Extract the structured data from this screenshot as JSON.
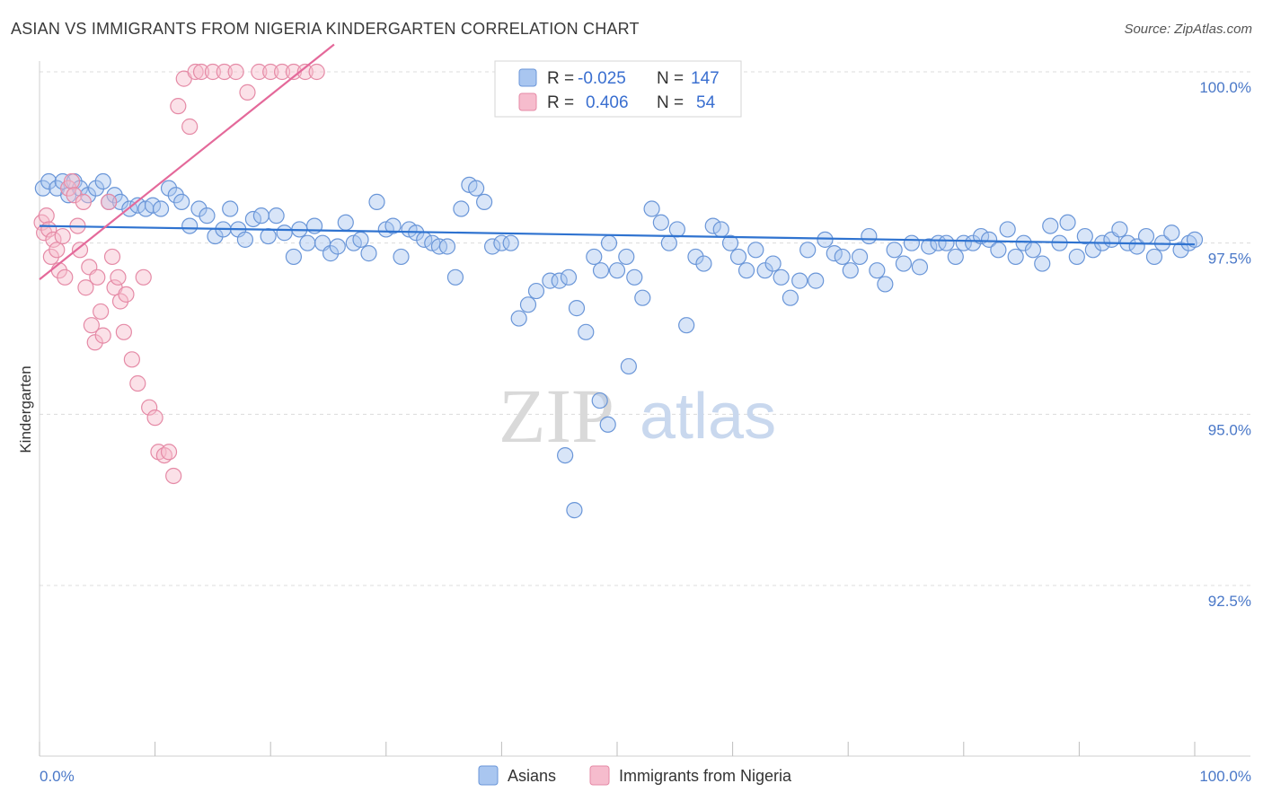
{
  "header": {
    "title": "ASIAN VS IMMIGRANTS FROM NIGERIA KINDERGARTEN CORRELATION CHART",
    "source": "Source: ZipAtlas.com"
  },
  "watermark": {
    "zip": "ZIP",
    "atlas": "atlas"
  },
  "legend": {
    "r_label": "R =",
    "n_label": "N =",
    "rows": [
      {
        "r": "-0.025",
        "n": "147",
        "fill": "#a9c6f0",
        "stroke": "#6a96d8"
      },
      {
        "r": "0.406",
        "n": "54",
        "fill": "#f6bccd",
        "stroke": "#e58aa6"
      }
    ]
  },
  "chart_data": {
    "type": "scatter",
    "title": "ASIAN VS IMMIGRANTS FROM NIGERIA KINDERGARTEN CORRELATION CHART",
    "xlabel": "",
    "ylabel": "Kindergarten",
    "xlim": [
      0,
      100
    ],
    "ylim": [
      90.2,
      100.4
    ],
    "x_tick_labels": [
      "0.0%",
      "100.0%"
    ],
    "y_ticks": [
      {
        "value": 100.0,
        "label": "100.0%"
      },
      {
        "value": 97.5,
        "label": "97.5%"
      },
      {
        "value": 95.0,
        "label": "95.0%"
      },
      {
        "value": 92.5,
        "label": "92.5%"
      }
    ],
    "grid": true,
    "series": [
      {
        "name": "Asians",
        "color": "#a9c6f0",
        "stroke": "#6a96d8",
        "trend_color": "#2f73d0",
        "trend": {
          "x": [
            0,
            100
          ],
          "y": [
            97.75,
            97.48
          ]
        },
        "points": [
          [
            0.3,
            98.3
          ],
          [
            0.8,
            98.4
          ],
          [
            1.5,
            98.3
          ],
          [
            2.0,
            98.4
          ],
          [
            2.5,
            98.2
          ],
          [
            3.0,
            98.4
          ],
          [
            3.5,
            98.3
          ],
          [
            4.2,
            98.2
          ],
          [
            4.9,
            98.3
          ],
          [
            5.5,
            98.4
          ],
          [
            6.0,
            98.1
          ],
          [
            6.5,
            98.2
          ],
          [
            7.0,
            98.1
          ],
          [
            7.8,
            98.0
          ],
          [
            8.5,
            98.05
          ],
          [
            9.2,
            98.0
          ],
          [
            9.8,
            98.05
          ],
          [
            10.5,
            98.0
          ],
          [
            11.2,
            98.3
          ],
          [
            11.8,
            98.2
          ],
          [
            12.3,
            98.1
          ],
          [
            13.0,
            97.75
          ],
          [
            13.8,
            98.0
          ],
          [
            14.5,
            97.9
          ],
          [
            15.2,
            97.6
          ],
          [
            15.9,
            97.7
          ],
          [
            16.5,
            98.0
          ],
          [
            17.2,
            97.7
          ],
          [
            17.8,
            97.55
          ],
          [
            18.5,
            97.85
          ],
          [
            19.2,
            97.9
          ],
          [
            19.8,
            97.6
          ],
          [
            20.5,
            97.9
          ],
          [
            21.2,
            97.65
          ],
          [
            22.0,
            97.3
          ],
          [
            22.5,
            97.7
          ],
          [
            23.2,
            97.5
          ],
          [
            23.8,
            97.75
          ],
          [
            24.5,
            97.5
          ],
          [
            25.2,
            97.35
          ],
          [
            25.8,
            97.45
          ],
          [
            26.5,
            97.8
          ],
          [
            27.2,
            97.5
          ],
          [
            27.8,
            97.55
          ],
          [
            28.5,
            97.35
          ],
          [
            29.2,
            98.1
          ],
          [
            30.0,
            97.7
          ],
          [
            30.6,
            97.75
          ],
          [
            31.3,
            97.3
          ],
          [
            32.0,
            97.7
          ],
          [
            32.6,
            97.65
          ],
          [
            33.3,
            97.55
          ],
          [
            34.0,
            97.5
          ],
          [
            34.6,
            97.45
          ],
          [
            35.3,
            97.45
          ],
          [
            36.0,
            97.0
          ],
          [
            36.5,
            98.0
          ],
          [
            37.2,
            98.35
          ],
          [
            37.8,
            98.3
          ],
          [
            38.5,
            98.1
          ],
          [
            39.2,
            97.45
          ],
          [
            40.0,
            97.5
          ],
          [
            40.8,
            97.5
          ],
          [
            41.5,
            96.4
          ],
          [
            42.3,
            96.6
          ],
          [
            43.0,
            96.8
          ],
          [
            44.2,
            96.95
          ],
          [
            45.0,
            96.95
          ],
          [
            45.8,
            97.0
          ],
          [
            46.5,
            96.55
          ],
          [
            47.3,
            96.2
          ],
          [
            48.0,
            97.3
          ],
          [
            48.6,
            97.1
          ],
          [
            49.3,
            97.5
          ],
          [
            50.0,
            97.1
          ],
          [
            50.8,
            97.3
          ],
          [
            51.5,
            97.0
          ],
          [
            52.2,
            96.7
          ],
          [
            53.0,
            98.0
          ],
          [
            53.8,
            97.8
          ],
          [
            54.5,
            97.5
          ],
          [
            55.2,
            97.7
          ],
          [
            56.0,
            96.3
          ],
          [
            56.8,
            97.3
          ],
          [
            57.5,
            97.2
          ],
          [
            58.3,
            97.75
          ],
          [
            59.0,
            97.7
          ],
          [
            59.8,
            97.5
          ],
          [
            60.5,
            97.3
          ],
          [
            61.2,
            97.1
          ],
          [
            62.0,
            97.4
          ],
          [
            62.8,
            97.1
          ],
          [
            63.5,
            97.2
          ],
          [
            64.2,
            97.0
          ],
          [
            65.0,
            96.7
          ],
          [
            65.8,
            96.95
          ],
          [
            66.5,
            97.4
          ],
          [
            67.2,
            96.95
          ],
          [
            68.0,
            97.55
          ],
          [
            68.8,
            97.35
          ],
          [
            69.5,
            97.3
          ],
          [
            70.2,
            97.1
          ],
          [
            71.0,
            97.3
          ],
          [
            71.8,
            97.6
          ],
          [
            72.5,
            97.1
          ],
          [
            73.2,
            96.9
          ],
          [
            74.0,
            97.4
          ],
          [
            74.8,
            97.2
          ],
          [
            75.5,
            97.5
          ],
          [
            76.2,
            97.15
          ],
          [
            77.0,
            97.45
          ],
          [
            77.8,
            97.5
          ],
          [
            78.5,
            97.5
          ],
          [
            79.3,
            97.3
          ],
          [
            80.0,
            97.5
          ],
          [
            80.8,
            97.5
          ],
          [
            81.5,
            97.6
          ],
          [
            82.2,
            97.55
          ],
          [
            83.0,
            97.4
          ],
          [
            83.8,
            97.7
          ],
          [
            84.5,
            97.3
          ],
          [
            85.2,
            97.5
          ],
          [
            86.0,
            97.4
          ],
          [
            86.8,
            97.2
          ],
          [
            87.5,
            97.75
          ],
          [
            88.3,
            97.5
          ],
          [
            89.0,
            97.8
          ],
          [
            89.8,
            97.3
          ],
          [
            90.5,
            97.6
          ],
          [
            91.2,
            97.4
          ],
          [
            92.0,
            97.5
          ],
          [
            92.8,
            97.55
          ],
          [
            93.5,
            97.7
          ],
          [
            94.2,
            97.5
          ],
          [
            95.0,
            97.45
          ],
          [
            95.8,
            97.6
          ],
          [
            96.5,
            97.3
          ],
          [
            97.2,
            97.5
          ],
          [
            98.0,
            97.65
          ],
          [
            98.8,
            97.4
          ],
          [
            99.5,
            97.5
          ],
          [
            100.0,
            97.55
          ],
          [
            45.5,
            94.4
          ],
          [
            46.3,
            93.6
          ],
          [
            48.5,
            95.2
          ],
          [
            49.2,
            94.85
          ],
          [
            51.0,
            95.7
          ]
        ]
      },
      {
        "name": "Immigrants from Nigeria",
        "color": "#f6bccd",
        "stroke": "#e58aa6",
        "trend_color": "#e4699a",
        "trend": {
          "x": [
            0,
            25.5
          ],
          "y": [
            96.97,
            100.4
          ]
        },
        "points": [
          [
            0.2,
            97.8
          ],
          [
            0.4,
            97.65
          ],
          [
            0.6,
            97.9
          ],
          [
            0.8,
            97.7
          ],
          [
            1.0,
            97.3
          ],
          [
            1.2,
            97.55
          ],
          [
            1.5,
            97.4
          ],
          [
            1.7,
            97.1
          ],
          [
            2.0,
            97.6
          ],
          [
            2.2,
            97.0
          ],
          [
            2.5,
            98.3
          ],
          [
            2.8,
            98.4
          ],
          [
            3.0,
            98.2
          ],
          [
            3.3,
            97.75
          ],
          [
            3.5,
            97.4
          ],
          [
            3.8,
            98.1
          ],
          [
            4.0,
            96.85
          ],
          [
            4.3,
            97.15
          ],
          [
            4.5,
            96.3
          ],
          [
            4.8,
            96.05
          ],
          [
            5.0,
            97.0
          ],
          [
            5.3,
            96.5
          ],
          [
            5.5,
            96.15
          ],
          [
            6.0,
            98.1
          ],
          [
            6.3,
            97.3
          ],
          [
            6.5,
            96.85
          ],
          [
            6.8,
            97.0
          ],
          [
            7.0,
            96.65
          ],
          [
            7.3,
            96.2
          ],
          [
            7.5,
            96.75
          ],
          [
            8.0,
            95.8
          ],
          [
            8.5,
            95.45
          ],
          [
            9.0,
            97.0
          ],
          [
            9.5,
            95.1
          ],
          [
            10.0,
            94.95
          ],
          [
            10.3,
            94.45
          ],
          [
            10.8,
            94.4
          ],
          [
            11.2,
            94.45
          ],
          [
            11.6,
            94.1
          ],
          [
            12.0,
            99.5
          ],
          [
            12.5,
            99.9
          ],
          [
            13.0,
            99.2
          ],
          [
            13.5,
            100.0
          ],
          [
            14.0,
            100.0
          ],
          [
            15.0,
            100.0
          ],
          [
            16.0,
            100.0
          ],
          [
            17.0,
            100.0
          ],
          [
            18.0,
            99.7
          ],
          [
            19.0,
            100.0
          ],
          [
            20.0,
            100.0
          ],
          [
            21.0,
            100.0
          ],
          [
            22.0,
            100.0
          ],
          [
            23.0,
            100.0
          ],
          [
            24.0,
            100.0
          ]
        ]
      }
    ]
  },
  "bottom_legend": {
    "items": [
      {
        "label": "Asians",
        "fill": "#a9c6f0",
        "stroke": "#6a96d8"
      },
      {
        "label": "Immigrants from Nigeria",
        "fill": "#f6bccd",
        "stroke": "#e58aa6"
      }
    ]
  }
}
